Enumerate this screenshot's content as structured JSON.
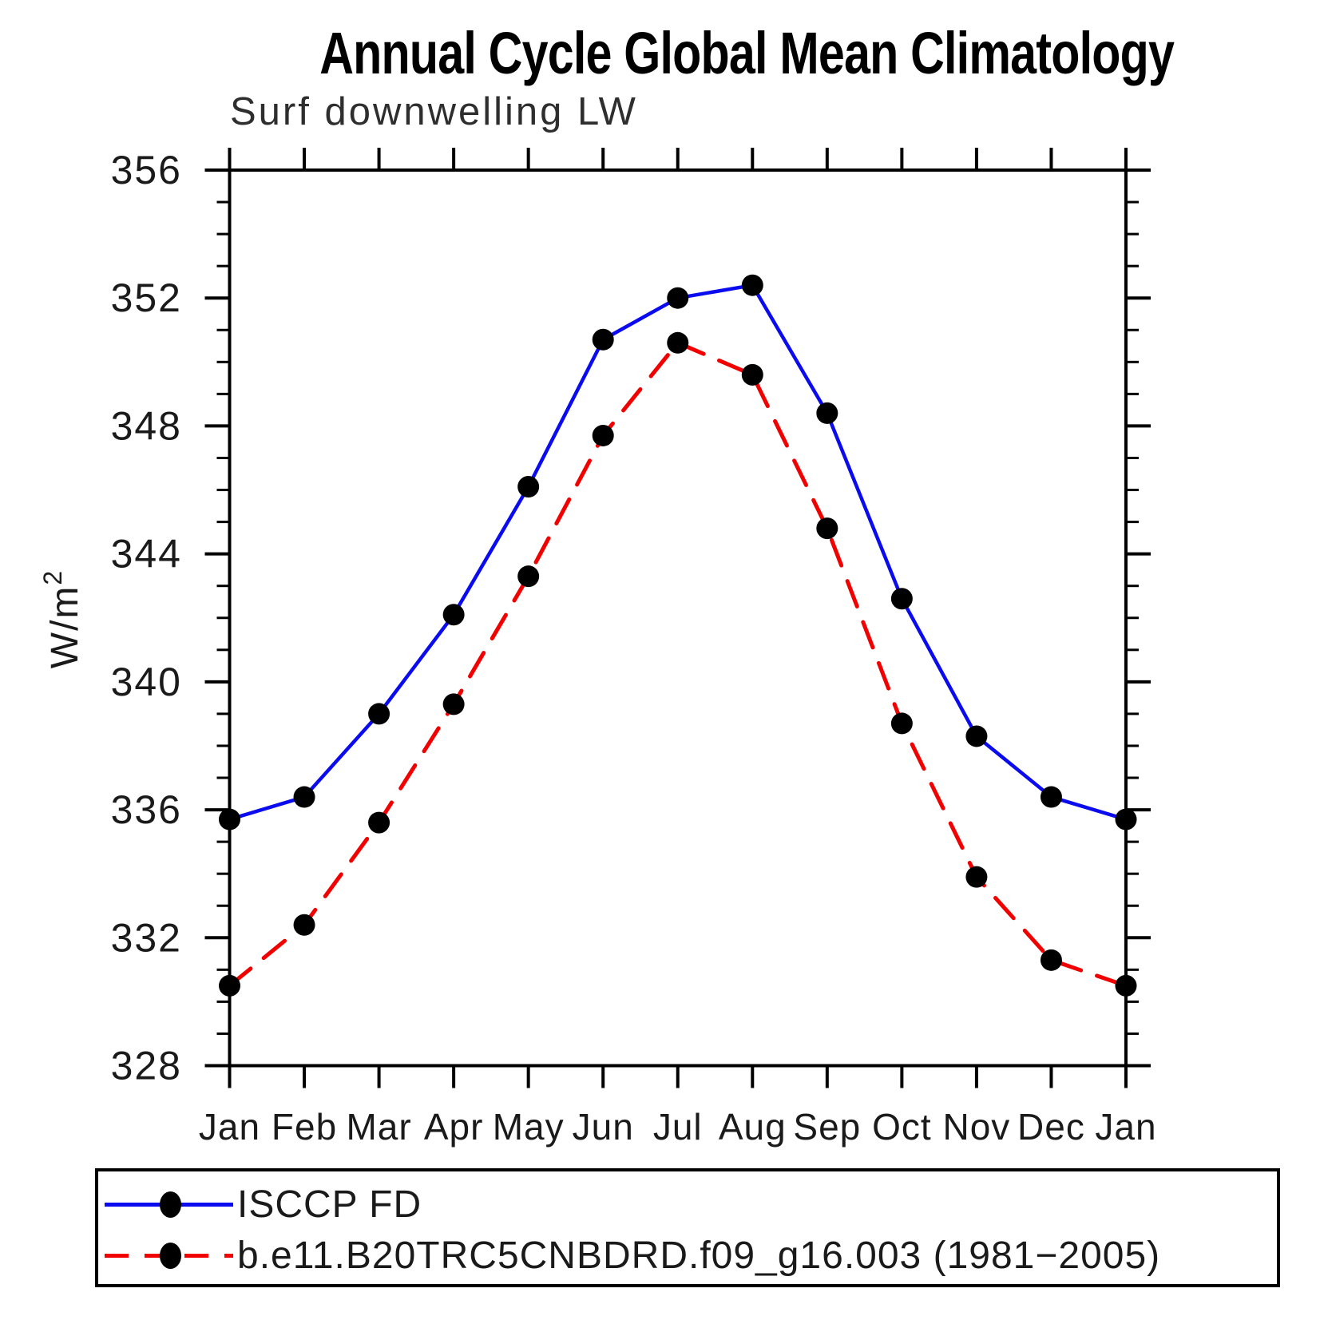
{
  "chart_data": {
    "type": "line",
    "title": "Annual Cycle Global Mean Climatology",
    "subtitle": "Surf downwelling LW",
    "ylabel": "W/m²",
    "ylabel_base": "W/m",
    "ylabel_sup": "2",
    "xlabel": "",
    "ylim": [
      328,
      356
    ],
    "yticks_major": [
      328,
      332,
      336,
      340,
      344,
      348,
      352,
      356
    ],
    "ytick_minor_step": 1,
    "grid": false,
    "legend_position": "bottom box",
    "categories": [
      "Jan",
      "Feb",
      "Mar",
      "Apr",
      "May",
      "Jun",
      "Jul",
      "Aug",
      "Sep",
      "Oct",
      "Nov",
      "Dec",
      "Jan"
    ],
    "series": [
      {
        "name": "ISCCP FD",
        "line_style": "solid",
        "color": "#0b0bf0",
        "marker": "filled-circle",
        "marker_color": "#000000",
        "values": [
          335.7,
          336.4,
          339.0,
          342.1,
          346.1,
          350.7,
          352.0,
          352.4,
          348.4,
          342.6,
          338.3,
          336.4,
          335.7
        ]
      },
      {
        "name": "b.e11.B20TRC5CNBDRD.f09_g16.003 (1981−2005)",
        "line_style": "dashed",
        "color": "#f20000",
        "marker": "filled-circle",
        "marker_color": "#000000",
        "values": [
          330.5,
          332.4,
          335.6,
          339.3,
          343.3,
          347.7,
          350.6,
          349.6,
          344.8,
          338.7,
          333.9,
          331.3,
          330.5
        ]
      }
    ]
  }
}
